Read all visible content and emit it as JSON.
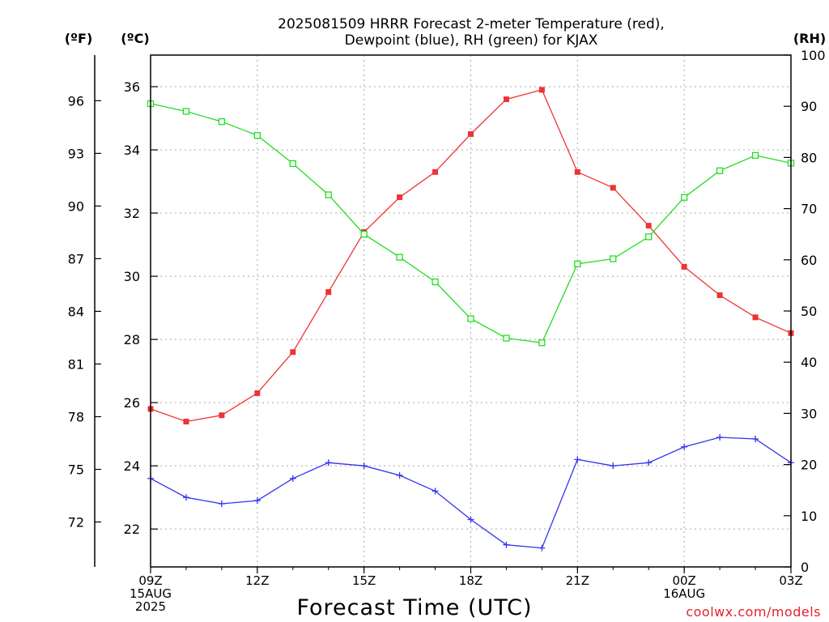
{
  "chart_data": {
    "type": "line",
    "title_lines": [
      "2025081509 HRRR Forecast 2-meter Temperature (red),",
      "Dewpoint (blue), RH (green) for KJAX"
    ],
    "xlabel": "Forecast Time (UTC)",
    "unit_labels": {
      "fahrenheit": "(ºF)",
      "celsius": "(ºC)",
      "rh": "(RH)"
    },
    "credit": "coolwx.com/models",
    "x": [
      9,
      10,
      11,
      12,
      13,
      14,
      15,
      16,
      17,
      18,
      19,
      20,
      21,
      22,
      23,
      24,
      25,
      26,
      27
    ],
    "x_ticks": [
      {
        "x": 9,
        "lines": [
          "09Z",
          "15AUG",
          "2025"
        ]
      },
      {
        "x": 12,
        "lines": [
          "12Z"
        ]
      },
      {
        "x": 15,
        "lines": [
          "15Z"
        ]
      },
      {
        "x": 18,
        "lines": [
          "18Z"
        ]
      },
      {
        "x": 21,
        "lines": [
          "21Z"
        ]
      },
      {
        "x": 24,
        "lines": [
          "00Z",
          "16AUG"
        ]
      },
      {
        "x": 27,
        "lines": [
          "03Z"
        ]
      }
    ],
    "celsius_axis": {
      "ylim": [
        20.8,
        37.0
      ],
      "ticks": [
        22,
        24,
        26,
        28,
        30,
        32,
        34,
        36
      ]
    },
    "fahrenheit_ticks": [
      72,
      75,
      78,
      81,
      84,
      87,
      90,
      93,
      96
    ],
    "rh_axis": {
      "ylim": [
        0,
        100
      ],
      "ticks": [
        0,
        10,
        20,
        30,
        40,
        50,
        60,
        70,
        80,
        90,
        100
      ]
    },
    "grid": true,
    "series": [
      {
        "key": "temperature",
        "axis": "celsius",
        "color": "#ee3333",
        "marker": "filled-square",
        "values": [
          25.8,
          25.4,
          25.6,
          26.3,
          27.6,
          29.5,
          31.4,
          32.5,
          33.3,
          34.5,
          35.6,
          35.9,
          33.3,
          32.8,
          31.6,
          30.3,
          29.4,
          28.7,
          28.2
        ]
      },
      {
        "key": "dewpoint",
        "axis": "celsius",
        "color": "#3333ee",
        "marker": "plus",
        "values": [
          23.6,
          23.0,
          22.8,
          22.9,
          23.6,
          24.1,
          24.0,
          23.7,
          23.2,
          22.3,
          21.5,
          21.4,
          24.2,
          24.0,
          24.1,
          24.6,
          24.9,
          24.85,
          24.1
        ]
      },
      {
        "key": "rh",
        "axis": "rh",
        "color": "#22dd22",
        "marker": "open-square",
        "values": [
          90.5,
          89.0,
          87.0,
          84.3,
          78.8,
          72.7,
          65.0,
          60.5,
          55.7,
          48.5,
          44.7,
          43.8,
          59.2,
          60.2,
          64.5,
          72.2,
          77.4,
          80.4,
          78.9
        ]
      }
    ]
  }
}
